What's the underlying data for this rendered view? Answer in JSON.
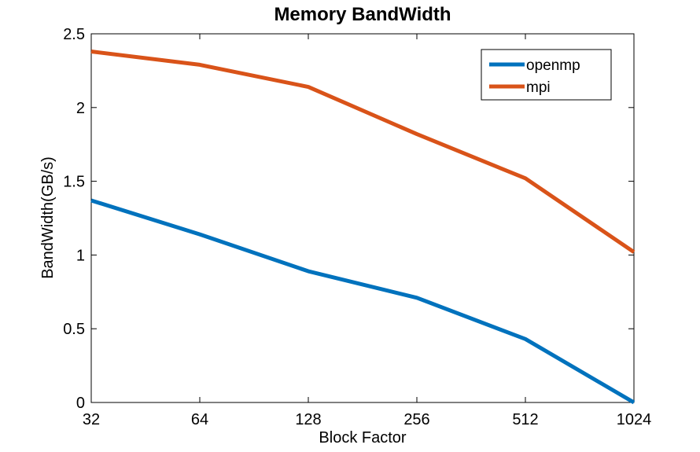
{
  "chart_data": {
    "type": "line",
    "title": "Memory BandWidth",
    "xlabel": "Block Factor",
    "ylabel": "BandWidth(GB/s)",
    "x_scale": "log2",
    "categories": [
      "32",
      "64",
      "128",
      "256",
      "512",
      "1024"
    ],
    "x": [
      32,
      64,
      128,
      256,
      512,
      1024
    ],
    "ylim": [
      0,
      2.5
    ],
    "yticks": [
      0,
      0.5,
      1,
      1.5,
      2,
      2.5
    ],
    "ytick_labels": [
      "0",
      "0.5",
      "1",
      "1.5",
      "2",
      "2.5"
    ],
    "grid": false,
    "legend_position": "top-right",
    "series": [
      {
        "name": "openmp",
        "color": "#0072BD",
        "values": [
          1.37,
          1.14,
          0.89,
          0.71,
          0.43,
          0.0
        ]
      },
      {
        "name": "mpi",
        "color": "#D95319",
        "values": [
          2.38,
          2.29,
          2.14,
          1.82,
          1.52,
          1.02
        ]
      }
    ]
  }
}
